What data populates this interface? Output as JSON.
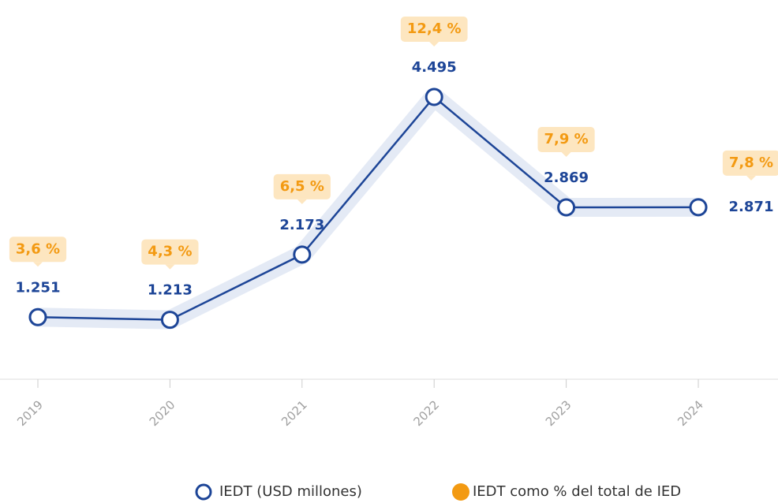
{
  "chart_data": {
    "type": "line",
    "categories": [
      "2019",
      "2020",
      "2021",
      "2022",
      "2023",
      "2024"
    ],
    "series": [
      {
        "name": "IEDT (USD millones)",
        "color": "#1d4597",
        "values": [
          1251,
          1213,
          2173,
          4495,
          2869,
          2871
        ],
        "value_labels": [
          "1.251",
          "1.213",
          "2.173",
          "4.495",
          "2.869",
          "2.871"
        ]
      },
      {
        "name": "IEDT como % del total de IED",
        "color": "#f39a12",
        "values": [
          3.6,
          4.3,
          6.5,
          12.4,
          7.9,
          7.8
        ],
        "value_labels": [
          "3,6 %",
          "4,3 %",
          "6,5 %",
          "12,4 %",
          "7,9 %",
          "7,8 %"
        ]
      }
    ]
  }
}
